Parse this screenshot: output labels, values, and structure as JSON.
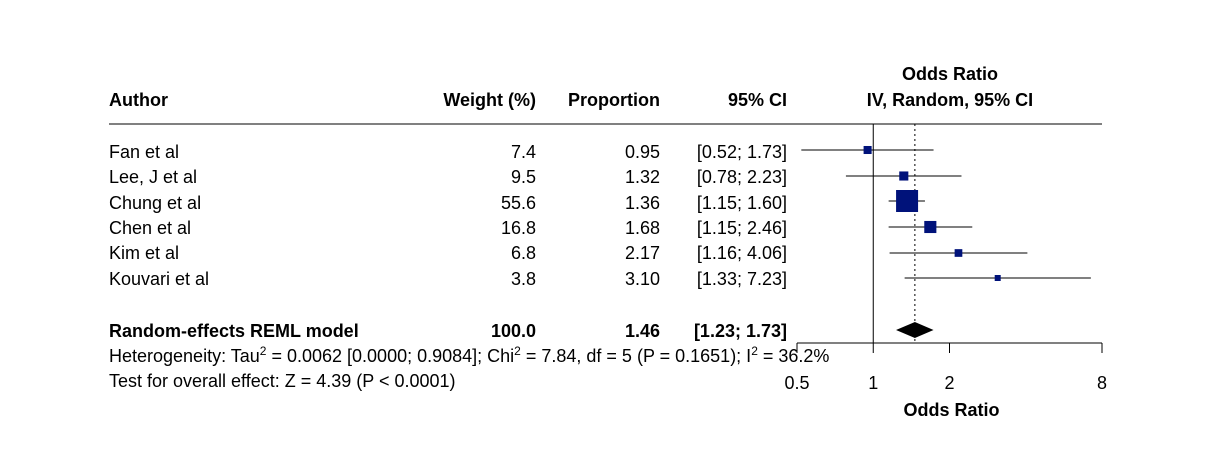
{
  "header": {
    "author": "Author",
    "weight": "Weight (%)",
    "proportion": "Proportion",
    "ci": "95% CI",
    "or_title": "Odds Ratio",
    "or_sub": "IV, Random, 95% CI"
  },
  "rows": [
    {
      "author": "Fan et al",
      "weight": "7.4",
      "proportion": "0.95",
      "ci": "[0.52; 1.73]"
    },
    {
      "author": "Lee, J et al",
      "weight": "9.5",
      "proportion": "1.32",
      "ci": "[0.78; 2.23]"
    },
    {
      "author": "Chung et al",
      "weight": "55.6",
      "proportion": "1.36",
      "ci": "[1.15; 1.60]"
    },
    {
      "author": "Chen et al",
      "weight": "16.8",
      "proportion": "1.68",
      "ci": "[1.15; 2.46]"
    },
    {
      "author": "Kim et al",
      "weight": "6.8",
      "proportion": "2.17",
      "ci": "[1.16; 4.06]"
    },
    {
      "author": "Kouvari et al",
      "weight": "3.8",
      "proportion": "3.10",
      "ci": "[1.33; 7.23]"
    }
  ],
  "summary": {
    "label": "Random-effects REML model",
    "weight": "100.0",
    "proportion": "1.46",
    "ci": "[1.23; 1.73]"
  },
  "footer": {
    "heterogeneity_prefix": "Heterogeneity: Tau",
    "heterogeneity_mid": " = 0.0062 [0.0000; 0.9084]; Chi",
    "heterogeneity_mid2": " = 7.84, df = 5 (P = 0.1651); I",
    "heterogeneity_suffix": " = 36.2%",
    "sup": "2",
    "overall": "Test for overall effect: Z = 4.39 (P < 0.0001)"
  },
  "chart_data": {
    "type": "forest",
    "xlabel": "Odds Ratio",
    "x_scale": "log",
    "xlim": [
      0.5,
      8
    ],
    "x_ticks": [
      0.5,
      1,
      2,
      8
    ],
    "x_tick_labels": [
      "0.5",
      "1",
      "2",
      "8"
    ],
    "reference_line": 1,
    "summary_line": 1.46,
    "studies": [
      {
        "name": "Fan et al",
        "estimate": 0.95,
        "lower": 0.52,
        "upper": 1.73,
        "weight": 7.4
      },
      {
        "name": "Lee, J et al",
        "estimate": 1.32,
        "lower": 0.78,
        "upper": 2.23,
        "weight": 9.5
      },
      {
        "name": "Chung et al",
        "estimate": 1.36,
        "lower": 1.15,
        "upper": 1.6,
        "weight": 55.6
      },
      {
        "name": "Chen et al",
        "estimate": 1.68,
        "lower": 1.15,
        "upper": 2.46,
        "weight": 16.8
      },
      {
        "name": "Kim et al",
        "estimate": 2.17,
        "lower": 1.16,
        "upper": 4.06,
        "weight": 6.8
      },
      {
        "name": "Kouvari et al",
        "estimate": 3.1,
        "lower": 1.33,
        "upper": 7.23,
        "weight": 3.8
      }
    ],
    "pooled": {
      "estimate": 1.46,
      "lower": 1.23,
      "upper": 1.73
    },
    "colors": {
      "box": "#00127a",
      "diamond": "#000000",
      "line": "#000000"
    }
  }
}
